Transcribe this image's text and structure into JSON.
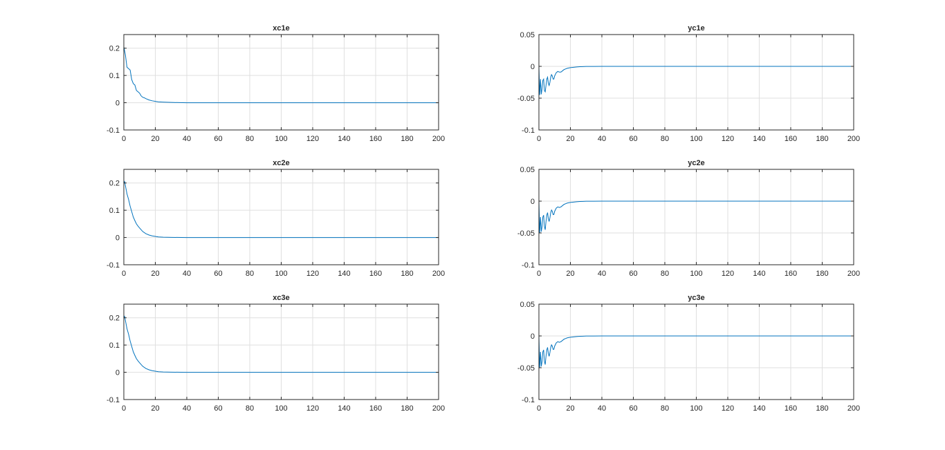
{
  "chart_data": [
    {
      "type": "line",
      "title": "xc1e",
      "xlabel": "",
      "ylabel": "",
      "xlim": [
        0,
        200
      ],
      "ylim": [
        -0.1,
        0.25
      ],
      "xticks": [
        0,
        20,
        40,
        60,
        80,
        100,
        120,
        140,
        160,
        180,
        200
      ],
      "xtick_labels": [
        "0",
        "20",
        "40",
        "60",
        "80",
        "100",
        "120",
        "140",
        "160",
        "180",
        "200"
      ],
      "yticks": [
        -0.1,
        0,
        0.1,
        0.2
      ],
      "ytick_labels": [
        "-0.1",
        "0",
        "0.1",
        "0.2"
      ],
      "grid": true,
      "series": [
        {
          "color": "#0072BD",
          "x": [
            0,
            1,
            2,
            3,
            4,
            5,
            6,
            7,
            8,
            9,
            10,
            11,
            12,
            13,
            14,
            16,
            18,
            20,
            22,
            25,
            30,
            40,
            60,
            100,
            200
          ],
          "y": [
            0.205,
            0.175,
            0.13,
            0.125,
            0.12,
            0.085,
            0.07,
            0.065,
            0.045,
            0.04,
            0.035,
            0.025,
            0.02,
            0.018,
            0.015,
            0.01,
            0.007,
            0.005,
            0.003,
            0.002,
            0.001,
            0.0,
            0.0,
            0.0,
            0.0
          ]
        }
      ]
    },
    {
      "type": "line",
      "title": "yc1e",
      "xlabel": "",
      "ylabel": "",
      "xlim": [
        0,
        200
      ],
      "ylim": [
        -0.1,
        0.05
      ],
      "xticks": [
        0,
        20,
        40,
        60,
        80,
        100,
        120,
        140,
        160,
        180,
        200
      ],
      "xtick_labels": [
        "0",
        "20",
        "40",
        "60",
        "80",
        "100",
        "120",
        "140",
        "160",
        "180",
        "200"
      ],
      "yticks": [
        -0.1,
        -0.05,
        0,
        0.05
      ],
      "ytick_labels": [
        "-0.1",
        "-0.05",
        "0",
        "0.05"
      ],
      "grid": true,
      "series": [
        {
          "color": "#0072BD",
          "x": [
            0,
            0.5,
            1,
            1.5,
            2,
            2.5,
            3,
            3.5,
            4,
            4.5,
            5,
            5.5,
            6,
            6.5,
            7,
            7.5,
            8,
            8.5,
            9,
            9.5,
            10,
            11,
            12,
            13,
            14,
            15,
            16,
            17,
            18,
            20,
            22,
            24,
            26,
            28,
            30,
            35,
            40,
            60,
            100,
            200
          ],
          "y": [
            0.0,
            -0.045,
            -0.02,
            -0.044,
            -0.035,
            -0.022,
            -0.02,
            -0.038,
            -0.04,
            -0.03,
            -0.02,
            -0.017,
            -0.027,
            -0.03,
            -0.025,
            -0.017,
            -0.013,
            -0.015,
            -0.02,
            -0.02,
            -0.015,
            -0.01,
            -0.008,
            -0.009,
            -0.009,
            -0.007,
            -0.005,
            -0.004,
            -0.003,
            -0.002,
            -0.0015,
            -0.001,
            -0.0006,
            -0.0004,
            -0.0002,
            -0.0001,
            0.0,
            0.0,
            0.0,
            0.0
          ]
        }
      ]
    },
    {
      "type": "line",
      "title": "xc2e",
      "xlabel": "",
      "ylabel": "",
      "xlim": [
        0,
        200
      ],
      "ylim": [
        -0.1,
        0.25
      ],
      "xticks": [
        0,
        20,
        40,
        60,
        80,
        100,
        120,
        140,
        160,
        180,
        200
      ],
      "xtick_labels": [
        "0",
        "20",
        "40",
        "60",
        "80",
        "100",
        "120",
        "140",
        "160",
        "180",
        "200"
      ],
      "yticks": [
        -0.1,
        0,
        0.1,
        0.2
      ],
      "ytick_labels": [
        "-0.1",
        "0",
        "0.1",
        "0.2"
      ],
      "grid": true,
      "series": [
        {
          "color": "#0072BD",
          "x": [
            0,
            0.5,
            1,
            2,
            3,
            4,
            5,
            6,
            7,
            8,
            9,
            10,
            12,
            14,
            16,
            18,
            20,
            22,
            25,
            30,
            40,
            60,
            100,
            200
          ],
          "y": [
            0.2,
            0.205,
            0.19,
            0.16,
            0.14,
            0.115,
            0.095,
            0.075,
            0.062,
            0.05,
            0.042,
            0.035,
            0.022,
            0.014,
            0.009,
            0.006,
            0.004,
            0.002,
            0.001,
            0.0005,
            0.0,
            0.0,
            0.0,
            0.0
          ]
        }
      ]
    },
    {
      "type": "line",
      "title": "yc2e",
      "xlabel": "",
      "ylabel": "",
      "xlim": [
        0,
        200
      ],
      "ylim": [
        -0.1,
        0.05
      ],
      "xticks": [
        0,
        20,
        40,
        60,
        80,
        100,
        120,
        140,
        160,
        180,
        200
      ],
      "xtick_labels": [
        "0",
        "20",
        "40",
        "60",
        "80",
        "100",
        "120",
        "140",
        "160",
        "180",
        "200"
      ],
      "yticks": [
        -0.1,
        -0.05,
        0,
        0.05
      ],
      "ytick_labels": [
        "-0.1",
        "-0.05",
        "0",
        "0.05"
      ],
      "grid": true,
      "series": [
        {
          "color": "#0072BD",
          "x": [
            0,
            0.5,
            1,
            1.5,
            2,
            2.5,
            3,
            3.5,
            4,
            4.5,
            5,
            5.5,
            6,
            6.5,
            7,
            7.5,
            8,
            8.5,
            9,
            9.5,
            10,
            11,
            12,
            13,
            14,
            15,
            16,
            17,
            18,
            20,
            22,
            24,
            26,
            28,
            30,
            35,
            40,
            60,
            100,
            200
          ],
          "y": [
            0.0,
            -0.05,
            -0.025,
            -0.048,
            -0.04,
            -0.025,
            -0.022,
            -0.04,
            -0.045,
            -0.032,
            -0.022,
            -0.018,
            -0.028,
            -0.032,
            -0.026,
            -0.018,
            -0.014,
            -0.016,
            -0.021,
            -0.021,
            -0.016,
            -0.011,
            -0.009,
            -0.01,
            -0.009,
            -0.007,
            -0.005,
            -0.004,
            -0.003,
            -0.002,
            -0.0015,
            -0.001,
            -0.0006,
            -0.0004,
            -0.0002,
            -0.0001,
            0.0,
            0.0,
            0.0,
            0.0
          ]
        }
      ]
    },
    {
      "type": "line",
      "title": "xc3e",
      "xlabel": "",
      "ylabel": "",
      "xlim": [
        0,
        200
      ],
      "ylim": [
        -0.1,
        0.25
      ],
      "xticks": [
        0,
        20,
        40,
        60,
        80,
        100,
        120,
        140,
        160,
        180,
        200
      ],
      "xtick_labels": [
        "0",
        "20",
        "40",
        "60",
        "80",
        "100",
        "120",
        "140",
        "160",
        "180",
        "200"
      ],
      "yticks": [
        -0.1,
        0,
        0.1,
        0.2
      ],
      "ytick_labels": [
        "-0.1",
        "0",
        "0.1",
        "0.2"
      ],
      "grid": true,
      "series": [
        {
          "color": "#0072BD",
          "x": [
            0,
            0.5,
            1,
            2,
            3,
            4,
            5,
            6,
            7,
            8,
            9,
            10,
            12,
            14,
            16,
            18,
            20,
            22,
            25,
            30,
            40,
            60,
            100,
            200
          ],
          "y": [
            0.2,
            0.205,
            0.19,
            0.16,
            0.14,
            0.115,
            0.095,
            0.075,
            0.062,
            0.05,
            0.042,
            0.035,
            0.022,
            0.014,
            0.009,
            0.006,
            0.004,
            0.002,
            0.001,
            0.0005,
            0.0,
            0.0,
            0.0,
            0.0
          ]
        }
      ]
    },
    {
      "type": "line",
      "title": "yc3e",
      "xlabel": "",
      "ylabel": "",
      "xlim": [
        0,
        200
      ],
      "ylim": [
        -0.1,
        0.05
      ],
      "xticks": [
        0,
        20,
        40,
        60,
        80,
        100,
        120,
        140,
        160,
        180,
        200
      ],
      "xtick_labels": [
        "0",
        "20",
        "40",
        "60",
        "80",
        "100",
        "120",
        "140",
        "160",
        "180",
        "200"
      ],
      "yticks": [
        -0.1,
        -0.05,
        0,
        0.05
      ],
      "ytick_labels": [
        "-0.1",
        "-0.05",
        "0",
        "0.05"
      ],
      "grid": true,
      "series": [
        {
          "color": "#0072BD",
          "x": [
            0,
            0.5,
            1,
            1.5,
            2,
            2.5,
            3,
            3.5,
            4,
            4.5,
            5,
            5.5,
            6,
            6.5,
            7,
            7.5,
            8,
            8.5,
            9,
            9.5,
            10,
            11,
            12,
            13,
            14,
            15,
            16,
            17,
            18,
            20,
            22,
            24,
            26,
            28,
            30,
            35,
            40,
            60,
            100,
            200
          ],
          "y": [
            0.0,
            -0.05,
            -0.025,
            -0.048,
            -0.04,
            -0.025,
            -0.022,
            -0.04,
            -0.045,
            -0.032,
            -0.022,
            -0.018,
            -0.028,
            -0.032,
            -0.026,
            -0.018,
            -0.014,
            -0.016,
            -0.021,
            -0.021,
            -0.016,
            -0.011,
            -0.009,
            -0.01,
            -0.009,
            -0.007,
            -0.005,
            -0.004,
            -0.003,
            -0.002,
            -0.0015,
            -0.001,
            -0.0006,
            -0.0004,
            -0.0002,
            -0.0001,
            0.0,
            0.0,
            0.0,
            0.0
          ]
        }
      ]
    }
  ]
}
